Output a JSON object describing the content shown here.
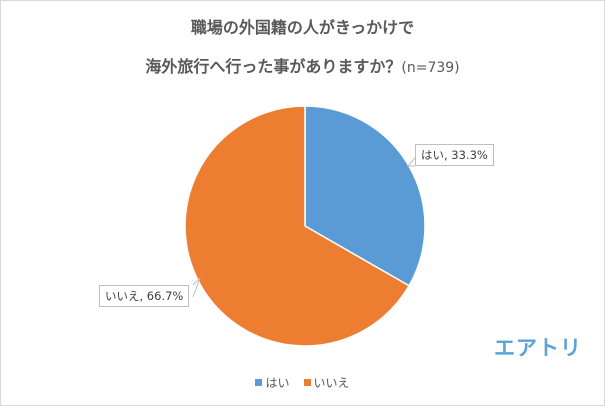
{
  "title": {
    "line1": "職場の外国籍の人がきっかけで",
    "line2": "海外旅行へ行った事がありますか？",
    "sample": "(n=739)"
  },
  "chart_data": {
    "type": "pie",
    "title": "職場の外国籍の人がきっかけで海外旅行へ行った事がありますか？(n=739)",
    "categories": [
      "はい",
      "いいえ"
    ],
    "values": [
      33.3,
      66.7
    ],
    "unit": "%",
    "colors": [
      "#5b9bd5",
      "#ed7d31"
    ],
    "data_labels": [
      "はい, 33.3%",
      "いいえ, 66.7%"
    ],
    "legend_position": "bottom",
    "n": 739
  },
  "labels": {
    "yes": "はい, 33.3%",
    "no": "いいえ, 66.7%"
  },
  "legend": {
    "items": [
      {
        "label": "はい",
        "color": "#5b9bd5"
      },
      {
        "label": "いいえ",
        "color": "#ed7d31"
      }
    ]
  },
  "brand": {
    "logo_text": "エアトリ",
    "color": "#5ba3d9"
  }
}
